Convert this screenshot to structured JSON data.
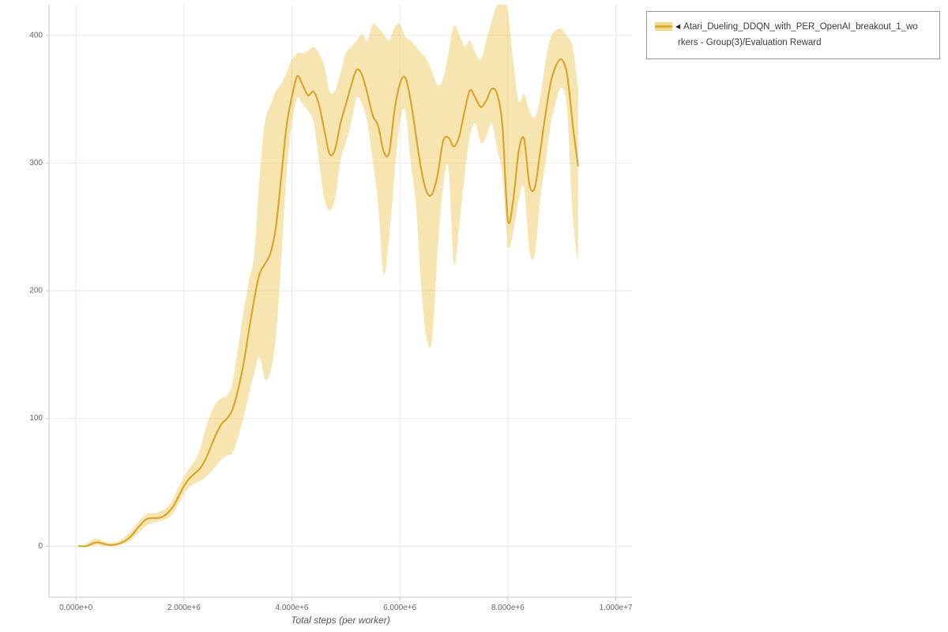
{
  "page": {
    "background": "#ffffff"
  },
  "legend": {
    "collapse_icon": "◀",
    "series_label_full": "Atari_Dueling_DDQN_with_PER_OpenAI_breakout_1_workers - Group(3)/Evaluation Reward",
    "label_line1": "Atari_Dueling_DDQN_with_PER_OpenAI_breakout_1_wo",
    "label_line2": "rkers - Group(3)/Evaluation Reward"
  },
  "chart_data": {
    "type": "line",
    "title": "",
    "xlabel": "Total steps (per worker)",
    "ylabel": "",
    "xlim": [
      -500000,
      10300000
    ],
    "ylim": [
      -40,
      424
    ],
    "x_ticks": [
      0,
      2000000,
      4000000,
      6000000,
      8000000,
      10000000
    ],
    "x_tick_labels": [
      "0.000e+0",
      "2.000e+6",
      "4.000e+6",
      "6.000e+6",
      "8.000e+6",
      "1.000e+7"
    ],
    "y_ticks": [
      0,
      100,
      200,
      300,
      400
    ],
    "y_tick_labels": [
      "0",
      "100",
      "200",
      "300",
      "400"
    ],
    "grid": true,
    "legend_position": "top-right-outside",
    "colors": {
      "line": "#d9a62b",
      "band": "#eecb63",
      "band_opacity": 0.5,
      "grid": "#e8e8e8",
      "spine": "#c9c9c9",
      "tick_text": "#666666"
    },
    "series": [
      {
        "name": "Atari_Dueling_DDQN_with_PER_OpenAI_breakout_1_workers - Group(3)/Evaluation Reward",
        "x": [
          50000,
          100000,
          200000,
          300000,
          400000,
          500000,
          600000,
          700000,
          800000,
          900000,
          1000000,
          1100000,
          1200000,
          1300000,
          1400000,
          1500000,
          1600000,
          1700000,
          1800000,
          1900000,
          2000000,
          2100000,
          2200000,
          2300000,
          2400000,
          2500000,
          2600000,
          2700000,
          2800000,
          2900000,
          3000000,
          3100000,
          3200000,
          3300000,
          3400000,
          3500000,
          3600000,
          3700000,
          3800000,
          3900000,
          4000000,
          4100000,
          4200000,
          4300000,
          4400000,
          4500000,
          4600000,
          4700000,
          4800000,
          4900000,
          5000000,
          5100000,
          5200000,
          5300000,
          5400000,
          5500000,
          5600000,
          5700000,
          5800000,
          5900000,
          6000000,
          6100000,
          6200000,
          6300000,
          6400000,
          6500000,
          6600000,
          6700000,
          6800000,
          6900000,
          7000000,
          7100000,
          7200000,
          7300000,
          7400000,
          7500000,
          7600000,
          7700000,
          7800000,
          7900000,
          8000000,
          8100000,
          8200000,
          8300000,
          8400000,
          8500000,
          8600000,
          8700000,
          8800000,
          8900000,
          9000000,
          9100000,
          9200000,
          9300000
        ],
        "mean": [
          0,
          0,
          0,
          2,
          3,
          2,
          1,
          1,
          2,
          4,
          7,
          12,
          17,
          21,
          22,
          22,
          23,
          26,
          31,
          39,
          47,
          53,
          57,
          61,
          68,
          78,
          88,
          96,
          100,
          107,
          122,
          142,
          168,
          193,
          213,
          221,
          229,
          249,
          288,
          329,
          352,
          368,
          361,
          353,
          356,
          346,
          326,
          307,
          311,
          331,
          346,
          361,
          373,
          369,
          354,
          337,
          329,
          309,
          308,
          341,
          362,
          367,
          349,
          321,
          294,
          277,
          276,
          291,
          317,
          320,
          313,
          321,
          341,
          357,
          351,
          344,
          349,
          358,
          354,
          329,
          256,
          271,
          309,
          319,
          283,
          281,
          309,
          339,
          364,
          377,
          381,
          369,
          331,
          298
        ],
        "band_lower": [
          0,
          0,
          0,
          0,
          1,
          0,
          0,
          0,
          1,
          2,
          4,
          8,
          12,
          16,
          18,
          19,
          20,
          22,
          26,
          33,
          41,
          46,
          49,
          51,
          54,
          58,
          63,
          68,
          71,
          73,
          85,
          100,
          118,
          135,
          148,
          131,
          136,
          163,
          222,
          291,
          331,
          351,
          346,
          341,
          332,
          302,
          272,
          263,
          272,
          302,
          316,
          332,
          351,
          346,
          331,
          301,
          266,
          213,
          241,
          291,
          331,
          341,
          301,
          266,
          201,
          161,
          163,
          231,
          281,
          296,
          221,
          251,
          291,
          321,
          331,
          316,
          321,
          331,
          311,
          291,
          236,
          246,
          271,
          281,
          231,
          229,
          271,
          301,
          331,
          349,
          359,
          341,
          261,
          221
        ],
        "band_upper": [
          0,
          0,
          2,
          5,
          6,
          4,
          3,
          3,
          4,
          7,
          11,
          16,
          21,
          25,
          26,
          26,
          28,
          31,
          37,
          46,
          54,
          61,
          67,
          76,
          92,
          104,
          112,
          116,
          118,
          128,
          155,
          183,
          207,
          228,
          288,
          332,
          345,
          356,
          362,
          371,
          381,
          386,
          386,
          388,
          391,
          386,
          376,
          356,
          357,
          371,
          386,
          391,
          396,
          401,
          396,
          409,
          406,
          401,
          396,
          406,
          409,
          399,
          396,
          391,
          386,
          381,
          371,
          361,
          366,
          386,
          407,
          401,
          391,
          396,
          386,
          381,
          396,
          411,
          424,
          427,
          419,
          379,
          349,
          354,
          341,
          336,
          351,
          381,
          399,
          404,
          405,
          399,
          391,
          359
        ]
      }
    ]
  }
}
